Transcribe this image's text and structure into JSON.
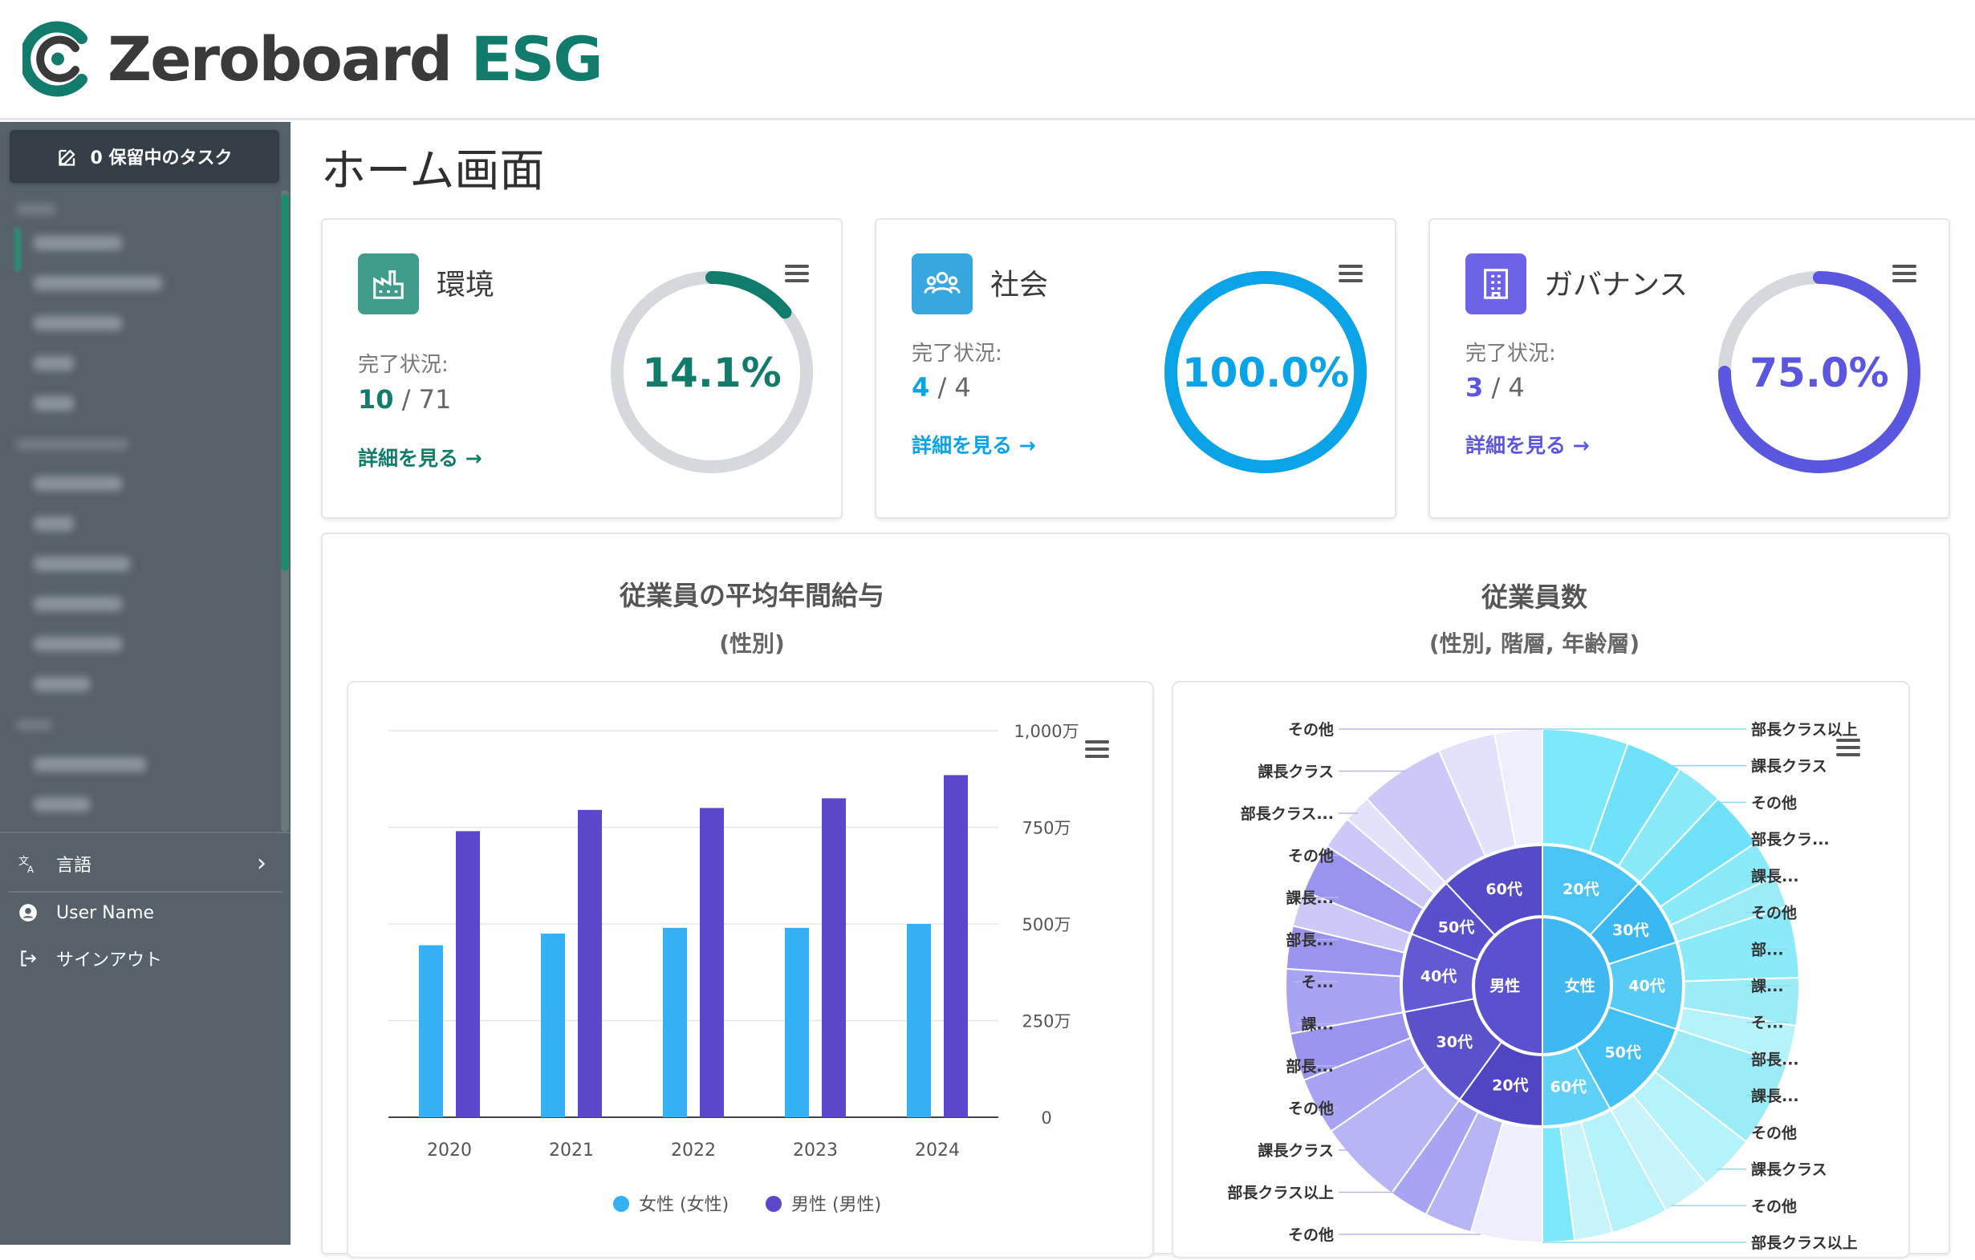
{
  "header": {
    "logo_word1": "Zeroboard",
    "logo_word2": "ESG"
  },
  "sidebar": {
    "pending_tasks_label": "0 保留中のタスク",
    "language_label": "言語",
    "user_name": "User Name",
    "signout_label": "サインアウト"
  },
  "page": {
    "title": "ホーム画面"
  },
  "kpis": [
    {
      "title": "環境",
      "status_label": "完了状況:",
      "done": "10",
      "total": "/ 71",
      "percent_label": "14.1%",
      "percent": 14.1,
      "link_label": "詳細を見る →",
      "color": "#127c6c",
      "badge_color": "#3f9b8a"
    },
    {
      "title": "社会",
      "status_label": "完了状況:",
      "done": "4",
      "total": "/ 4",
      "percent_label": "100.0%",
      "percent": 100.0,
      "link_label": "詳細を見る →",
      "color": "#0aa3e8",
      "badge_color": "#37a7e0"
    },
    {
      "title": "ガバナンス",
      "status_label": "完了状況:",
      "done": "3",
      "total": "/ 4",
      "percent_label": "75.0%",
      "percent": 75.0,
      "link_label": "詳細を見る →",
      "color": "#5b56e0",
      "badge_color": "#6c63e6"
    }
  ],
  "charts_section": {
    "salary_title": "従業員の平均年間給与",
    "salary_subtitle": "(性別)",
    "headcount_title": "従業員数",
    "headcount_subtitle": "(性別, 階層, 年齢層)"
  },
  "chart_data": [
    {
      "type": "bar",
      "title": "従業員の平均年間給与",
      "subtitle": "(性別)",
      "categories": [
        "2020",
        "2021",
        "2022",
        "2023",
        "2024"
      ],
      "series": [
        {
          "name": "女性 (女性)",
          "color": "#35b0f5",
          "values": [
            4450000,
            4750000,
            4900000,
            4900000,
            5000000
          ]
        },
        {
          "name": "男性 (男性)",
          "color": "#5b47c9",
          "values": [
            7400000,
            7950000,
            8000000,
            8250000,
            8850000
          ]
        }
      ],
      "yticks": [
        "0",
        "250万",
        "500万",
        "750万",
        "1,000万"
      ],
      "ylim": [
        0,
        10000000
      ],
      "legend_position": "bottom",
      "grid": true
    },
    {
      "type": "sunburst",
      "title": "従業員数",
      "subtitle": "(性別, 階層, 年齢層)",
      "inner": [
        {
          "label": "女性",
          "value": 50,
          "color": "#3fb7f0"
        },
        {
          "label": "男性",
          "value": 50,
          "color": "#5b50cf"
        }
      ],
      "middle": [
        {
          "label": "20代",
          "value": 12,
          "parent": "女性"
        },
        {
          "label": "30代",
          "value": 8,
          "parent": "女性"
        },
        {
          "label": "40代",
          "value": 10,
          "parent": "女性"
        },
        {
          "label": "50代",
          "value": 12,
          "parent": "女性"
        },
        {
          "label": "60代",
          "value": 8,
          "parent": "女性"
        },
        {
          "label": "20代",
          "value": 10,
          "parent": "男性"
        },
        {
          "label": "30代",
          "value": 12,
          "parent": "男性"
        },
        {
          "label": "40代",
          "value": 9,
          "parent": "男性"
        },
        {
          "label": "50代",
          "value": 7,
          "parent": "男性"
        },
        {
          "label": "60代",
          "value": 12,
          "parent": "男性"
        }
      ],
      "outer_labels_right": [
        "部長クラス以上",
        "課長クラス",
        "その他",
        "部長クラ...",
        "課長...",
        "その他",
        "部...",
        "課...",
        "そ...",
        "部長...",
        "課長...",
        "その他",
        "課長クラス",
        "その他",
        "部長クラス以上"
      ],
      "outer_labels_left": [
        "その他",
        "課長クラス",
        "部長クラス...",
        "その他",
        "課長...",
        "部長...",
        "そ...",
        "課...",
        "部長...",
        "その他",
        "課長クラス",
        "部長クラス以上",
        "その他"
      ]
    }
  ]
}
